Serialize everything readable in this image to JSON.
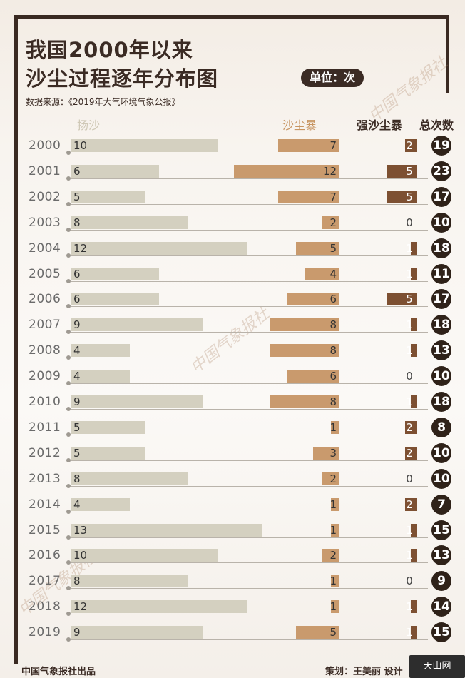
{
  "header": {
    "title_line1": "我国2000年以来",
    "title_line2": "沙尘过程逐年分布图",
    "unit": "单位：次",
    "source": "数据来源：《2019年大气环境气象公报》"
  },
  "watermark": "中国气象报社",
  "footer": {
    "left": "中国气象报社出品",
    "mid": "策划：王美丽  设计",
    "corner_logo": "天山网"
  },
  "colors": {
    "blowing_sand": "#d4d0c0",
    "sandstorm": "#c99a6d",
    "severe_sandstorm": "#7d5032",
    "total_badge": "#2f2219"
  },
  "chart_data": {
    "type": "bar",
    "categories": [
      "2000",
      "2001",
      "2002",
      "2003",
      "2004",
      "2005",
      "2006",
      "2007",
      "2008",
      "2009",
      "2010",
      "2011",
      "2012",
      "2013",
      "2014",
      "2015",
      "2016",
      "2017",
      "2018",
      "2019"
    ],
    "series": [
      {
        "name": "扬沙",
        "values": [
          10,
          6,
          5,
          8,
          12,
          6,
          6,
          9,
          4,
          4,
          9,
          5,
          5,
          8,
          4,
          13,
          10,
          8,
          12,
          9
        ]
      },
      {
        "name": "沙尘暴",
        "values": [
          7,
          12,
          7,
          2,
          5,
          4,
          6,
          8,
          8,
          6,
          8,
          1,
          3,
          2,
          1,
          1,
          2,
          1,
          1,
          5
        ]
      },
      {
        "name": "强沙尘暴",
        "values": [
          2,
          5,
          5,
          0,
          1,
          1,
          5,
          1,
          1,
          0,
          1,
          2,
          2,
          0,
          2,
          1,
          1,
          0,
          1,
          1
        ]
      },
      {
        "name": "总次数",
        "values": [
          19,
          23,
          17,
          10,
          18,
          11,
          17,
          18,
          13,
          10,
          18,
          8,
          10,
          10,
          7,
          15,
          13,
          9,
          14,
          15
        ]
      }
    ]
  }
}
